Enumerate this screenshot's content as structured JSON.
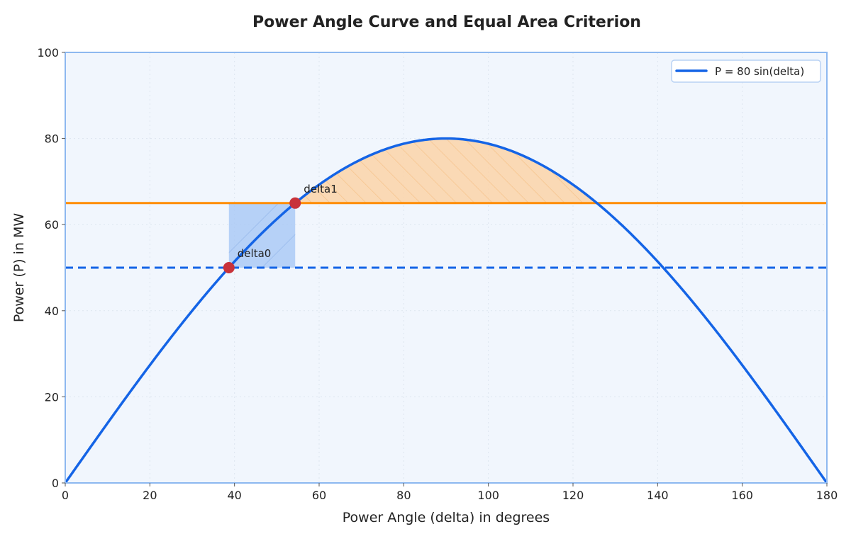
{
  "chart_data": {
    "type": "line",
    "title": "Power Angle Curve and Equal Area Criterion",
    "xlabel": "Power Angle (delta) in degrees",
    "ylabel": "Power (P) in MW",
    "xlim": [
      0,
      180
    ],
    "ylim": [
      0,
      100
    ],
    "xticks": [
      0,
      20,
      40,
      60,
      80,
      100,
      120,
      140,
      160,
      180
    ],
    "yticks": [
      0,
      20,
      40,
      60,
      80,
      100
    ],
    "grid": true,
    "legend_position": "top-right",
    "series": [
      {
        "name": "P = 80 sin(delta)",
        "function": "80*sin(delta)",
        "amplitude": 80,
        "color": "#1464e6"
      }
    ],
    "hlines": [
      {
        "y": 65,
        "style": "solid",
        "color": "#ff8c00"
      },
      {
        "y": 50,
        "style": "dashed",
        "color": "#1464e6"
      }
    ],
    "points": [
      {
        "label": "delta0",
        "x": 38.68,
        "y": 50,
        "color": "#c8323a"
      },
      {
        "label": "delta1",
        "x": 54.34,
        "y": 65,
        "color": "#c8323a"
      }
    ],
    "areas": [
      {
        "type": "rectangle",
        "x": [
          38.68,
          54.34
        ],
        "y": [
          50,
          65
        ],
        "color": "#a8c8f5",
        "hatch": "\\"
      },
      {
        "type": "between-curve-and-line",
        "x": [
          54.34,
          125.66
        ],
        "y_line": 65,
        "color": "#fbd3a8",
        "hatch": "/"
      }
    ],
    "colors": {
      "background": "#f1f6fd",
      "frame": "#8db8f0",
      "grid": "#dde5ef"
    }
  }
}
